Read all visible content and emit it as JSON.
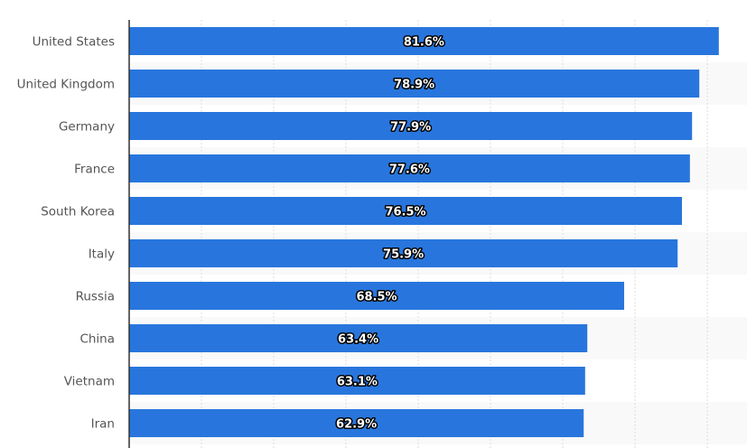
{
  "chart_data": {
    "type": "bar",
    "orientation": "horizontal",
    "categories": [
      "United States",
      "United Kingdom",
      "Germany",
      "France",
      "South Korea",
      "Italy",
      "Russia",
      "China",
      "Vietnam",
      "Iran"
    ],
    "values": [
      81.6,
      78.9,
      77.9,
      77.6,
      76.5,
      75.9,
      68.5,
      63.4,
      63.1,
      62.9
    ],
    "data_labels": [
      "81.6%",
      "78.9%",
      "77.9%",
      "77.6%",
      "76.5%",
      "75.9%",
      "68.5%",
      "63.4%",
      "63.1%",
      "62.9%"
    ],
    "title": "",
    "xlabel": "",
    "ylabel": "",
    "xlim": [
      0,
      85
    ],
    "grid": true,
    "bar_color": "#2876dd",
    "stripe_color": "#f9f9f9"
  }
}
